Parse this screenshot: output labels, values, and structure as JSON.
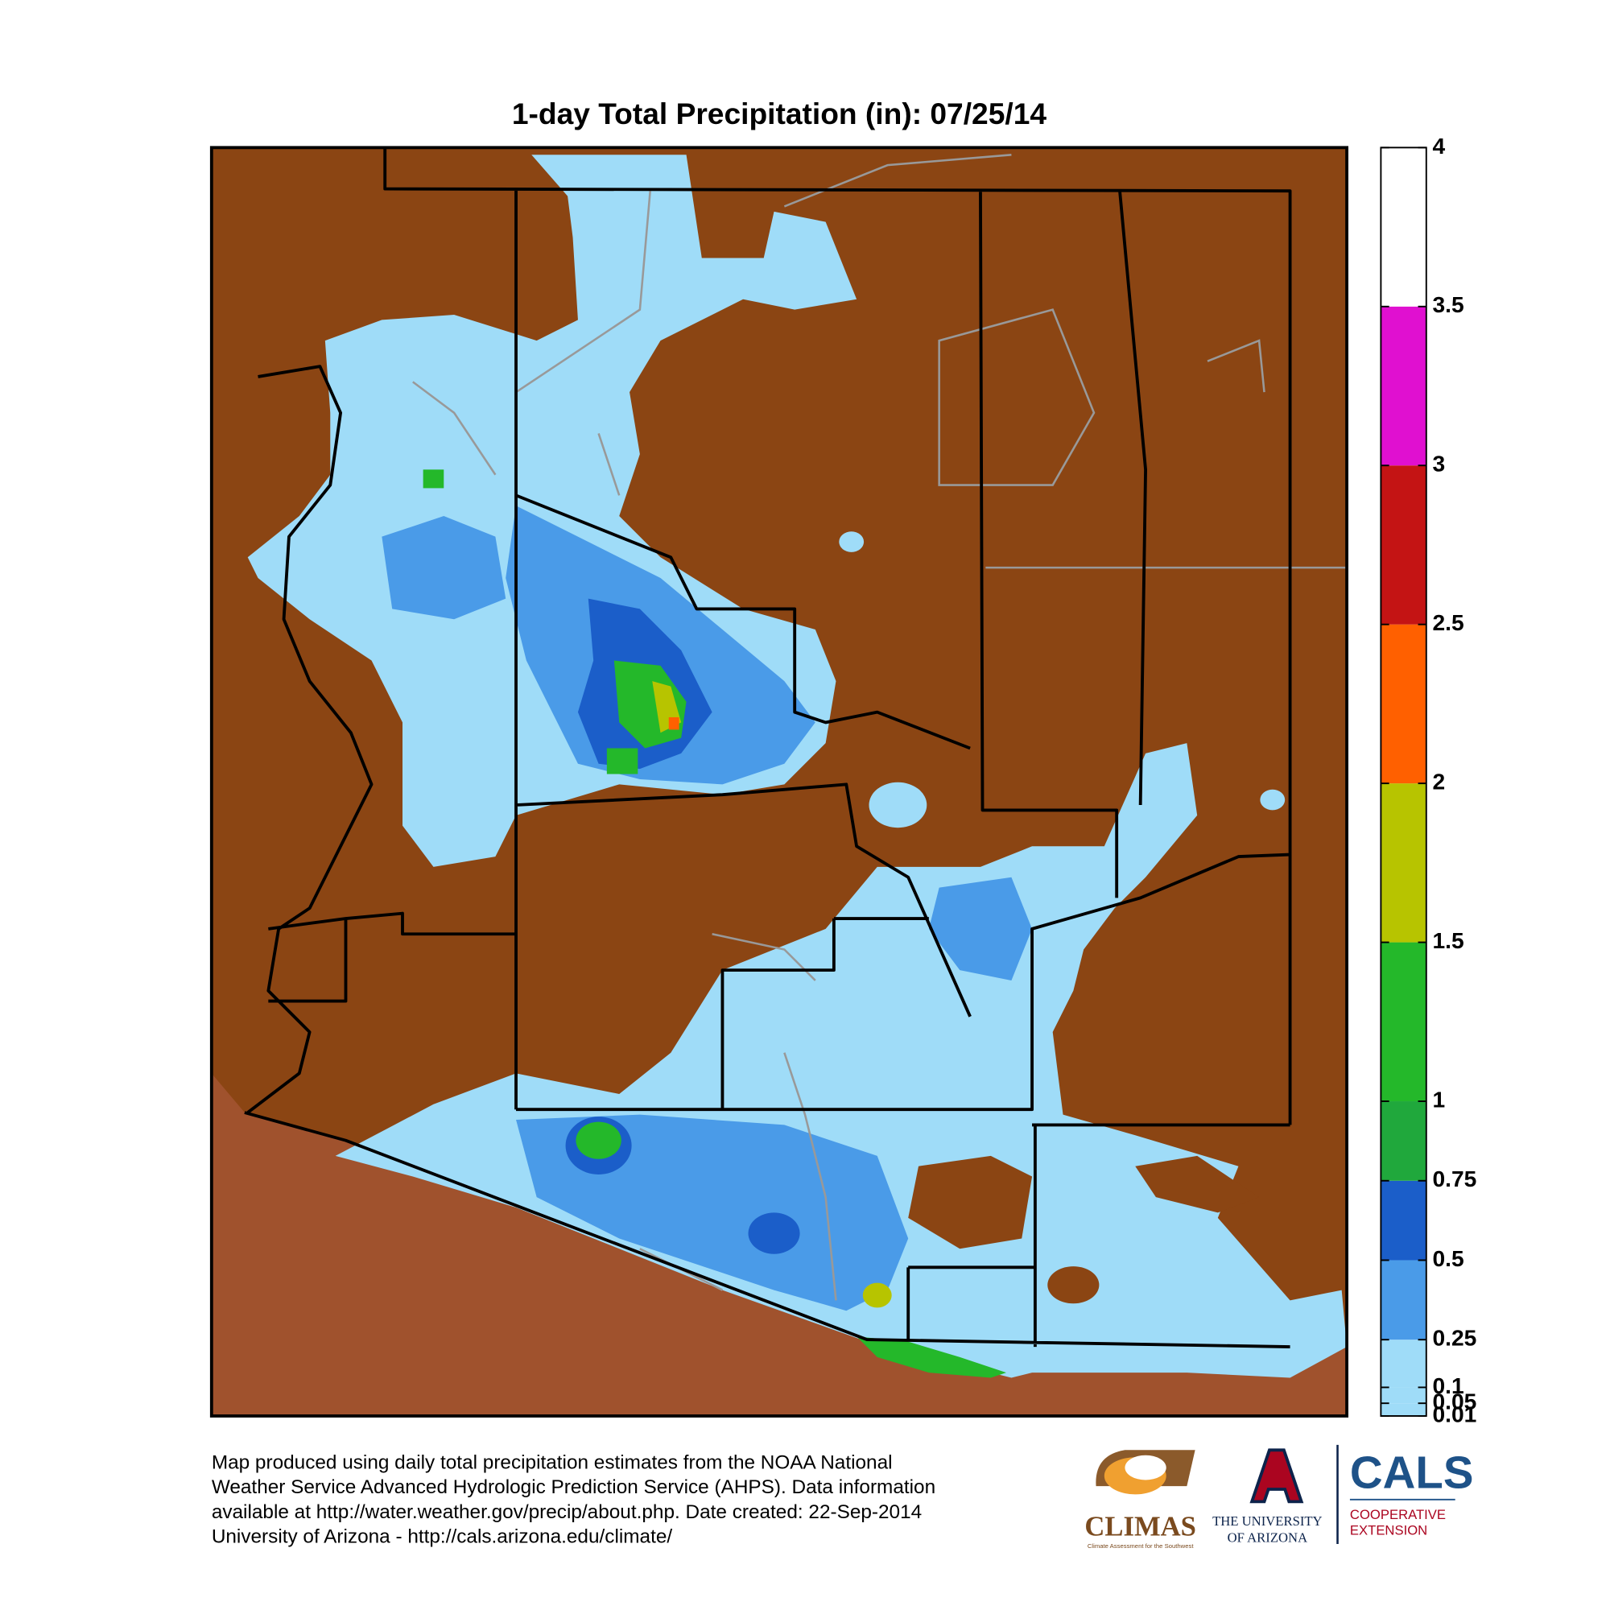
{
  "title": "1-day Total Precipitation (in): 07/25/14",
  "colorbar": {
    "lim": [
      0.01,
      4
    ],
    "ticks": [
      0.01,
      0.05,
      0.1,
      0.25,
      0.5,
      0.75,
      1,
      1.5,
      2,
      2.5,
      3,
      3.5,
      4
    ],
    "band_colors": [
      "#9fdcf8",
      "#9fdcf8",
      "#9fdcf8",
      "#4a9be8",
      "#1b5ec9",
      "#20a83c",
      "#24b82a",
      "#b7c400",
      "#ff6000",
      "#c41414",
      "#e010d0",
      "#ffffff"
    ]
  },
  "footer": {
    "lines": [
      "Map produced using daily total precipitation estimates from the NOAA National",
      "Weather Service Advanced Hydrologic Prediction Service (AHPS). Data information",
      "available at http://water.weather.gov/precip/about.php. Date created: 22-Sep-2014",
      "University of Arizona - http://cals.arizona.edu/climate/"
    ]
  },
  "logos": {
    "climas": {
      "name": "CLIMAS",
      "tagline": "Climate Assessment for the Southwest"
    },
    "university": {
      "line1": "THE UNIVERSITY",
      "line2": "OF ARIZONA"
    },
    "cals": {
      "name": "CALS",
      "line1": "COOPERATIVE",
      "line2": "EXTENSION"
    }
  }
}
